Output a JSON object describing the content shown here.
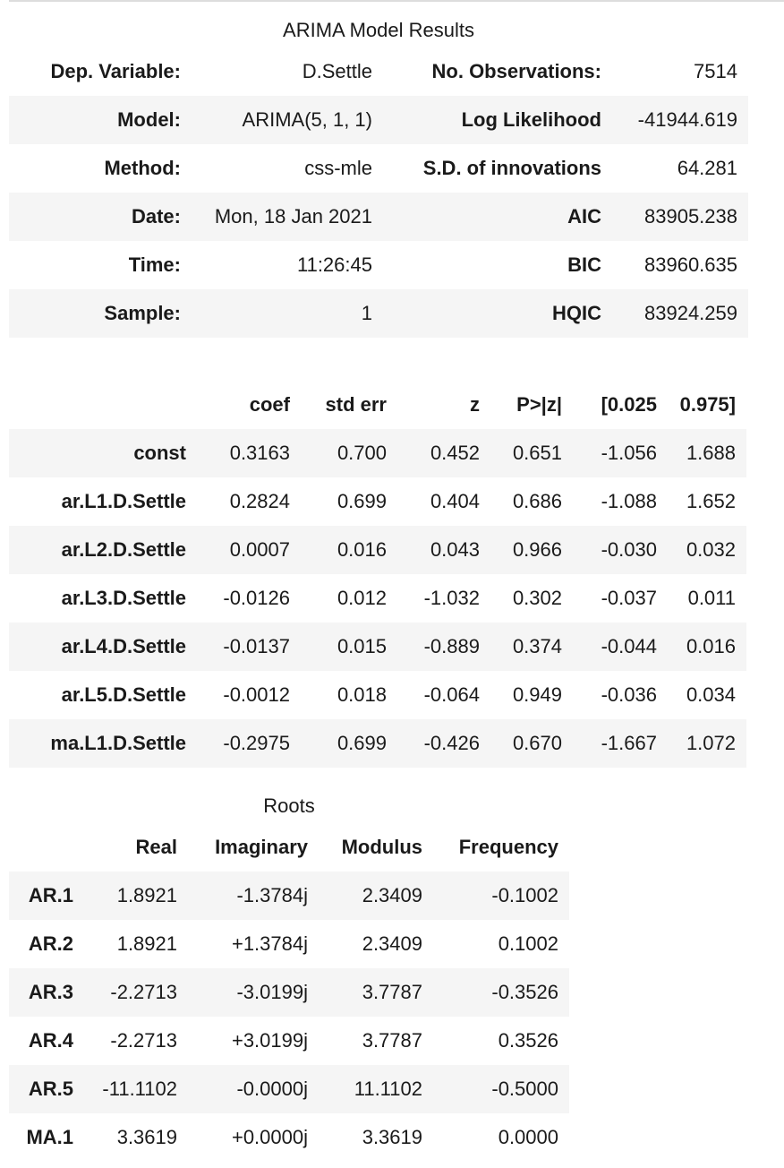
{
  "summary": {
    "title": "ARIMA Model Results",
    "rows": [
      [
        "Dep. Variable:",
        "D.Settle",
        "No. Observations:",
        "7514"
      ],
      [
        "Model:",
        "ARIMA(5, 1, 1)",
        "Log Likelihood",
        "-41944.619"
      ],
      [
        "Method:",
        "css-mle",
        "S.D. of innovations",
        "64.281"
      ],
      [
        "Date:",
        "Mon, 18 Jan 2021",
        "AIC",
        "83905.238"
      ],
      [
        "Time:",
        "11:26:45",
        "BIC",
        "83960.635"
      ],
      [
        "Sample:",
        "1",
        "HQIC",
        "83924.259"
      ]
    ]
  },
  "coef": {
    "headers": [
      "",
      "coef",
      "std err",
      "z",
      "P>|z|",
      "[0.025",
      "0.975]"
    ],
    "rows": [
      [
        "const",
        "0.3163",
        "0.700",
        "0.452",
        "0.651",
        "-1.056",
        "1.688"
      ],
      [
        "ar.L1.D.Settle",
        "0.2824",
        "0.699",
        "0.404",
        "0.686",
        "-1.088",
        "1.652"
      ],
      [
        "ar.L2.D.Settle",
        "0.0007",
        "0.016",
        "0.043",
        "0.966",
        "-0.030",
        "0.032"
      ],
      [
        "ar.L3.D.Settle",
        "-0.0126",
        "0.012",
        "-1.032",
        "0.302",
        "-0.037",
        "0.011"
      ],
      [
        "ar.L4.D.Settle",
        "-0.0137",
        "0.015",
        "-0.889",
        "0.374",
        "-0.044",
        "0.016"
      ],
      [
        "ar.L5.D.Settle",
        "-0.0012",
        "0.018",
        "-0.064",
        "0.949",
        "-0.036",
        "0.034"
      ],
      [
        "ma.L1.D.Settle",
        "-0.2975",
        "0.699",
        "-0.426",
        "0.670",
        "-1.667",
        "1.072"
      ]
    ]
  },
  "roots": {
    "title": "Roots",
    "headers": [
      "",
      "Real",
      "Imaginary",
      "Modulus",
      "Frequency"
    ],
    "rows": [
      [
        "AR.1",
        "1.8921",
        "-1.3784j",
        "2.3409",
        "-0.1002"
      ],
      [
        "AR.2",
        "1.8921",
        "+1.3784j",
        "2.3409",
        "0.1002"
      ],
      [
        "AR.3",
        "-2.2713",
        "-3.0199j",
        "3.7787",
        "-0.3526"
      ],
      [
        "AR.4",
        "-2.2713",
        "+3.0199j",
        "3.7787",
        "0.3526"
      ],
      [
        "AR.5",
        "-11.1102",
        "-0.0000j",
        "11.1102",
        "-0.5000"
      ],
      [
        "MA.1",
        "3.3619",
        "+0.0000j",
        "3.3619",
        "0.0000"
      ]
    ]
  }
}
